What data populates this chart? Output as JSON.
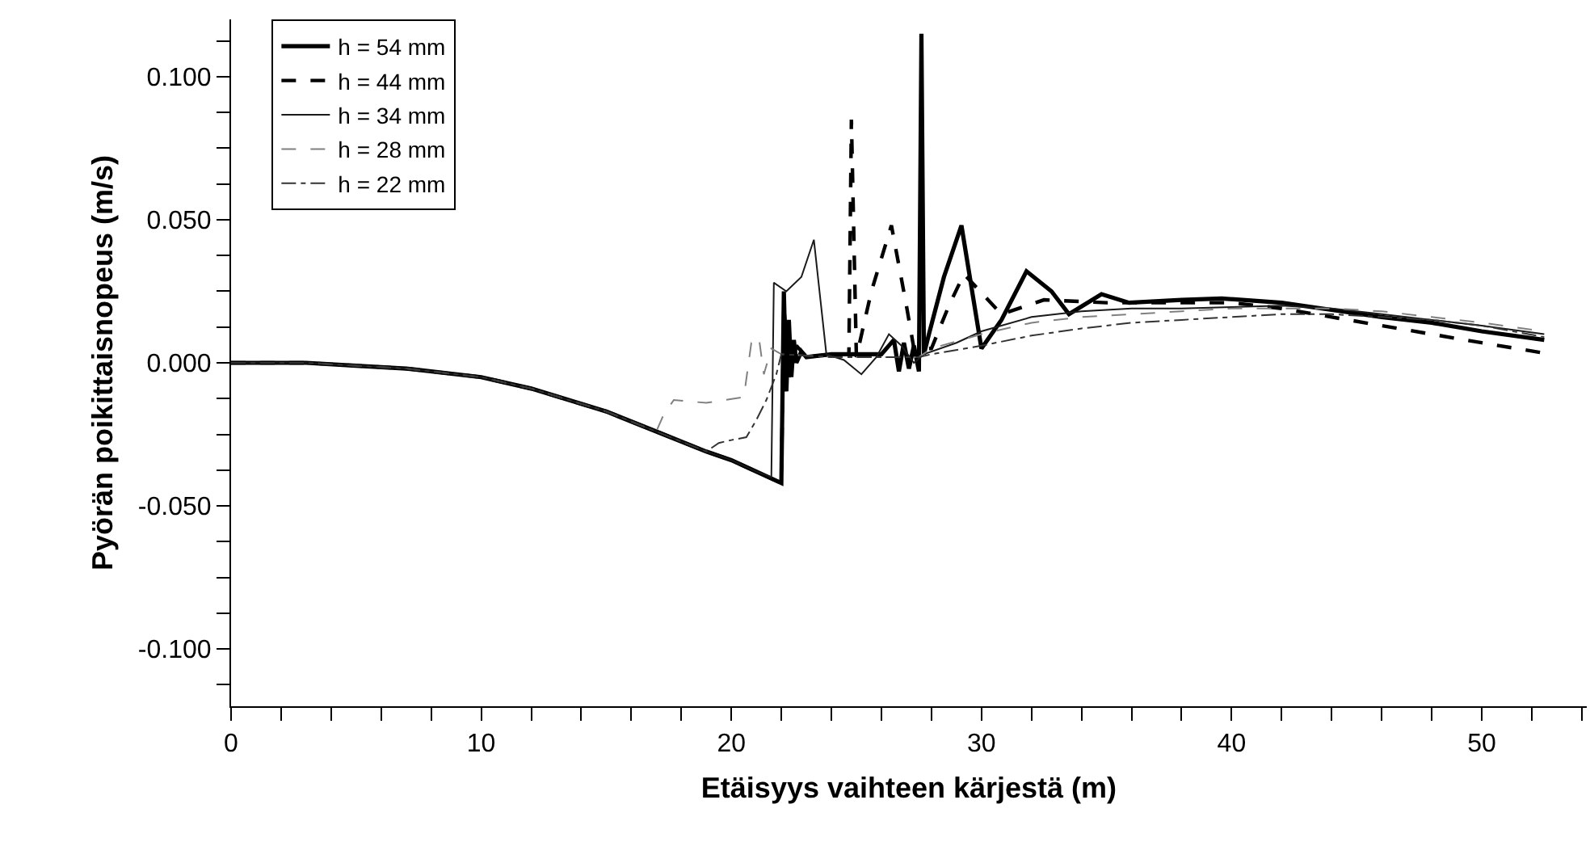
{
  "chart_data": {
    "type": "line",
    "xlabel": "Etäisyys vaihteen kärjestä (m)",
    "ylabel": "Pyörän poikittaisnopeus (m/s)",
    "xlim": [
      0,
      54.2
    ],
    "ylim": [
      -0.12,
      0.12
    ],
    "xticks": [
      0,
      {
        "value": 2,
        "label": null
      },
      {
        "value": 4,
        "label": null
      },
      {
        "value": 6,
        "label": null
      },
      {
        "value": 8,
        "label": null
      },
      10,
      {
        "value": 12,
        "label": null
      },
      {
        "value": 14,
        "label": null
      },
      {
        "value": 16,
        "label": null
      },
      {
        "value": 18,
        "label": null
      },
      20,
      {
        "value": 22,
        "label": null
      },
      {
        "value": 24,
        "label": null
      },
      {
        "value": 26,
        "label": null
      },
      {
        "value": 28,
        "label": null
      },
      30,
      {
        "value": 32,
        "label": null
      },
      {
        "value": 34,
        "label": null
      },
      {
        "value": 36,
        "label": null
      },
      {
        "value": 38,
        "label": null
      },
      40,
      {
        "value": 42,
        "label": null
      },
      {
        "value": 44,
        "label": null
      },
      {
        "value": 46,
        "label": null
      },
      {
        "value": 48,
        "label": null
      },
      50,
      {
        "value": 52,
        "label": null
      },
      {
        "value": 54,
        "label": null
      }
    ],
    "yticks": [
      {
        "value": -0.1125,
        "label": null
      },
      {
        "value": -0.1,
        "label": "-0.100"
      },
      {
        "value": -0.0875,
        "label": null
      },
      {
        "value": -0.075,
        "label": null
      },
      {
        "value": -0.0625,
        "label": null
      },
      {
        "value": -0.05,
        "label": "-0.050"
      },
      {
        "value": -0.0375,
        "label": null
      },
      {
        "value": -0.025,
        "label": null
      },
      {
        "value": -0.0125,
        "label": null
      },
      {
        "value": 0,
        "label": "0.000"
      },
      {
        "value": 0.0125,
        "label": null
      },
      {
        "value": 0.025,
        "label": null
      },
      {
        "value": 0.0375,
        "label": null
      },
      {
        "value": 0.05,
        "label": "0.050"
      },
      {
        "value": 0.0625,
        "label": null
      },
      {
        "value": 0.075,
        "label": null
      },
      {
        "value": 0.0875,
        "label": null
      },
      {
        "value": 0.1,
        "label": "0.100"
      },
      {
        "value": 0.1125,
        "label": null
      }
    ],
    "grid": false,
    "legend": "top left",
    "marker": "none",
    "series": [
      {
        "name": "h = 54 mm",
        "color": "#000000",
        "line_style": "solid",
        "x": [
          0,
          3,
          5,
          7,
          10,
          12,
          15,
          17,
          19,
          20,
          21,
          22,
          22.1,
          22.2,
          22.3,
          22.4,
          22.5,
          22.6,
          22.8,
          23,
          24,
          25,
          26,
          26.5,
          26.7,
          26.9,
          27.1,
          27.3,
          27.5,
          27.6,
          27.7,
          27.9,
          28.5,
          29.2,
          30,
          30.8,
          31.8,
          32.8,
          33.5,
          34.8,
          35.9,
          38,
          39.6,
          42,
          44,
          46,
          48,
          50,
          52.5
        ],
        "values": [
          0,
          0,
          -0.001,
          -0.002,
          -0.005,
          -0.009,
          -0.017,
          -0.024,
          -0.031,
          -0.034,
          -0.038,
          -0.042,
          0.025,
          -0.01,
          0.015,
          -0.005,
          0.008,
          0,
          0.004,
          0.002,
          0.003,
          0.003,
          0.003,
          0.008,
          -0.003,
          0.007,
          -0.002,
          0.006,
          -0.003,
          0.115,
          0.003,
          0.01,
          0.03,
          0.048,
          0.005,
          0.015,
          0.032,
          0.025,
          0.017,
          0.024,
          0.021,
          0.022,
          0.0225,
          0.021,
          0.0185,
          0.016,
          0.014,
          0.011,
          0.008
        ]
      },
      {
        "name": "h = 44 mm",
        "color": "#000000",
        "line_style": "dashed",
        "x": [
          0,
          3,
          5,
          7,
          10,
          12,
          15,
          17,
          19,
          20,
          21,
          22,
          22.1,
          22.3,
          22.6,
          23,
          24,
          24.7,
          24.8,
          25,
          25.6,
          26.4,
          27,
          27.3,
          28,
          28.7,
          29.3,
          30.8,
          32.5,
          35,
          38,
          40,
          42,
          44,
          46,
          48,
          50,
          52.5
        ],
        "values": [
          0,
          0,
          -0.001,
          -0.002,
          -0.005,
          -0.009,
          -0.017,
          -0.024,
          -0.031,
          -0.034,
          -0.038,
          -0.042,
          0.02,
          -0.005,
          0.006,
          0.002,
          0.003,
          0.003,
          0.085,
          0.002,
          0.025,
          0.048,
          0.02,
          0.005,
          0.005,
          0.02,
          0.031,
          0.017,
          0.022,
          0.021,
          0.021,
          0.021,
          0.019,
          0.016,
          0.013,
          0.01,
          0.007,
          0.0034
        ]
      },
      {
        "name": "h = 34 mm",
        "color": "#1a1a1a",
        "line_style": "solid",
        "x": [
          0,
          3,
          5,
          7,
          10,
          12,
          15,
          17,
          19,
          20,
          21,
          21.6,
          21.7,
          22.2,
          22.8,
          23.3,
          23.8,
          24.5,
          25.2,
          25.8,
          26.3,
          26.8,
          27.3,
          27.7,
          29,
          30,
          32,
          34,
          36,
          38,
          40,
          42,
          44,
          46,
          48,
          50,
          52.5
        ],
        "values": [
          0,
          0,
          -0.001,
          -0.002,
          -0.005,
          -0.009,
          -0.017,
          -0.024,
          -0.031,
          -0.034,
          -0.038,
          -0.04,
          0.028,
          0.025,
          0.03,
          0.043,
          0.003,
          0.001,
          -0.004,
          0.002,
          0.01,
          0.006,
          0,
          0.003,
          0.007,
          0.011,
          0.016,
          0.018,
          0.019,
          0.019,
          0.0195,
          0.02,
          0.019,
          0.017,
          0.015,
          0.013,
          0.01
        ]
      },
      {
        "name": "h = 28 mm",
        "color": "#808080",
        "line_style": "dashed",
        "x": [
          0,
          3,
          5,
          7,
          10,
          12,
          15,
          17,
          17.3,
          17.7,
          19,
          20.5,
          20.8,
          21.1,
          21.3,
          21.6,
          22,
          24,
          26,
          27.5,
          28,
          30,
          32,
          34,
          36,
          38,
          40,
          42,
          44,
          46,
          48,
          50,
          52.5
        ],
        "values": [
          0,
          0,
          -0.001,
          -0.002,
          -0.005,
          -0.009,
          -0.017,
          -0.024,
          -0.018,
          -0.013,
          -0.014,
          -0.012,
          0.007,
          0.009,
          -0.004,
          0.005,
          0.003,
          0.002,
          0.002,
          0.002,
          0.005,
          0.01,
          0.014,
          0.016,
          0.017,
          0.018,
          0.019,
          0.019,
          0.019,
          0.018,
          0.016,
          0.014,
          0.011
        ]
      },
      {
        "name": "h = 22 mm",
        "color": "#333333",
        "line_style": "dashdot",
        "x": [
          0,
          3,
          5,
          7,
          10,
          12,
          15,
          17,
          19,
          19.5,
          20,
          20.6,
          21,
          21.4,
          21.8,
          22,
          24,
          26,
          27.5,
          28,
          30,
          32,
          34,
          36,
          38,
          40,
          42,
          44,
          46,
          48,
          50,
          52.5
        ],
        "values": [
          0,
          0,
          -0.001,
          -0.002,
          -0.005,
          -0.009,
          -0.017,
          -0.024,
          -0.031,
          -0.028,
          -0.027,
          -0.026,
          -0.02,
          -0.013,
          -0.004,
          0.003,
          0.002,
          0.002,
          0.002,
          0.003,
          0.006,
          0.0095,
          0.012,
          0.014,
          0.015,
          0.016,
          0.017,
          0.017,
          0.016,
          0.015,
          0.013,
          0.009
        ]
      }
    ]
  }
}
